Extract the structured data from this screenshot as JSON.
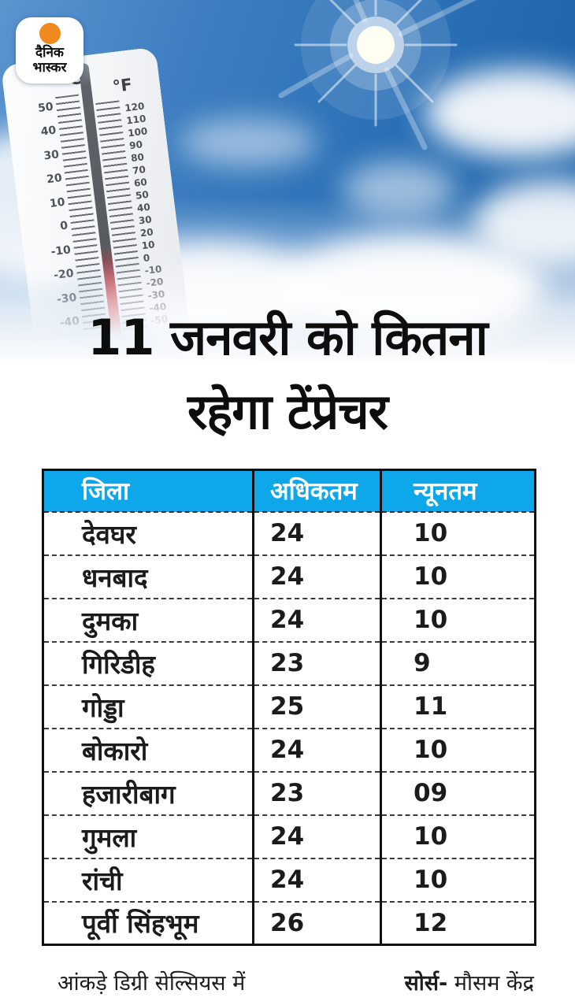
{
  "brand": {
    "line1": "दैनिक",
    "line2": "भास्कर"
  },
  "headline": {
    "line1": "11 जनवरी को कितना",
    "line2": "रहेगा टेंप्रेचर"
  },
  "thermometer": {
    "celsius_label": "°C",
    "fahrenheit_label": "°F",
    "celsius_ticks": [
      "50",
      "40",
      "30",
      "20",
      "10",
      "0",
      "-10",
      "-20",
      "-30",
      "-40"
    ],
    "fahrenheit_ticks": [
      "120",
      "110",
      "100",
      "90",
      "80",
      "70",
      "60",
      "50",
      "40",
      "30",
      "20",
      "10",
      "0",
      "-10",
      "-20",
      "-30",
      "-40",
      "-50"
    ]
  },
  "table": {
    "headers": [
      "जिला",
      "अधिकतम",
      "न्यूनतम"
    ],
    "rows": [
      {
        "district": "देवघर",
        "max": "24",
        "min": "10"
      },
      {
        "district": "धनबाद",
        "max": "24",
        "min": "10"
      },
      {
        "district": "दुमका",
        "max": "24",
        "min": "10"
      },
      {
        "district": "गिरिडीह",
        "max": "23",
        "min": "9"
      },
      {
        "district": "गोड्डा",
        "max": "25",
        "min": "11"
      },
      {
        "district": "बोकारो",
        "max": "24",
        "min": "10"
      },
      {
        "district": "हजारीबाग",
        "max": "23",
        "min": "09"
      },
      {
        "district": "गुमला",
        "max": "24",
        "min": "10"
      },
      {
        "district": "रांची",
        "max": "24",
        "min": "10"
      },
      {
        "district": "पूर्वी सिंहभूम",
        "max": "26",
        "min": "12"
      }
    ]
  },
  "footer": {
    "note": "आंकड़े डिग्री सेल्सियस में",
    "source_label": "सोर्स-",
    "source_value": " मौसम केंद्र"
  },
  "colors": {
    "table_header_bg": "#0ea7e9",
    "logo_dot": "#f08a1e",
    "sky_deep_blue": "#2268ae",
    "headline_text": "#0d0d0d"
  },
  "chart_data": {
    "type": "table",
    "title": "11 जनवरी को कितना रहेगा टेंप्रेचर",
    "columns": [
      "जिला",
      "अधिकतम",
      "न्यूनतम"
    ],
    "rows": [
      [
        "देवघर",
        24,
        10
      ],
      [
        "धनबाद",
        24,
        10
      ],
      [
        "दुमका",
        24,
        10
      ],
      [
        "गिरिडीह",
        23,
        9
      ],
      [
        "गोड्डा",
        25,
        11
      ],
      [
        "बोकारो",
        24,
        10
      ],
      [
        "हजारीबाग",
        23,
        9
      ],
      [
        "गुमला",
        24,
        10
      ],
      [
        "रांची",
        24,
        10
      ],
      [
        "पूर्वी सिंहभूम",
        26,
        12
      ]
    ],
    "units": "डिग्री सेल्सियस",
    "source": "मौसम केंद्र"
  }
}
